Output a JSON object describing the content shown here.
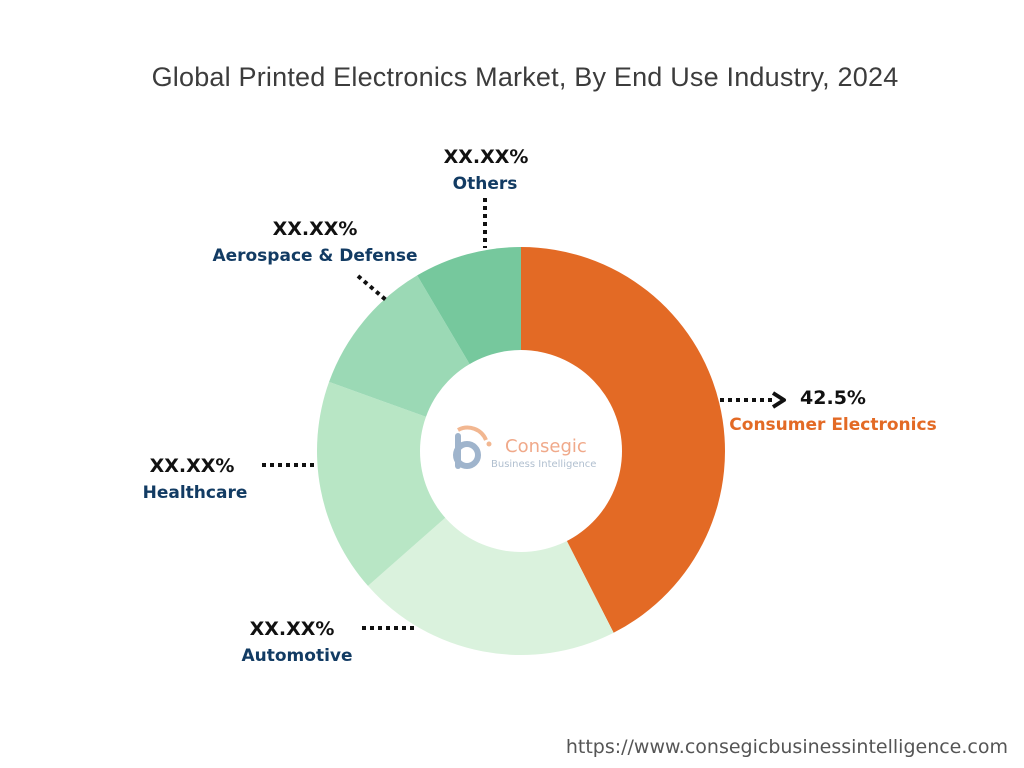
{
  "chart_data": {
    "type": "pie",
    "title": "Global Printed Electronics Market, By End Use Industry, 2024",
    "slices": [
      {
        "label": "Consumer Electronics",
        "value_text": "42.5%",
        "value": 42.5,
        "color": "#e36a25",
        "label_color": "#e36a25"
      },
      {
        "label": "Automotive",
        "value_text": "XX.XX%",
        "value": 21.0,
        "color": "#daf2dd",
        "label_color": "#123b63"
      },
      {
        "label": "Healthcare",
        "value_text": "XX.XX%",
        "value": 17.0,
        "color": "#b8e6c5",
        "label_color": "#123b63"
      },
      {
        "label": "Aerospace & Defense",
        "value_text": "XX.XX%",
        "value": 11.0,
        "color": "#9bd9b5",
        "label_color": "#123b63"
      },
      {
        "label": "Others",
        "value_text": "XX.XX%",
        "value": 8.5,
        "color": "#76c89d",
        "label_color": "#123b63"
      }
    ]
  },
  "logo": {
    "name": "Consegic",
    "tagline": "Business Intelligence"
  },
  "source_url": "https://www.consegicbusinessintelligence.com"
}
